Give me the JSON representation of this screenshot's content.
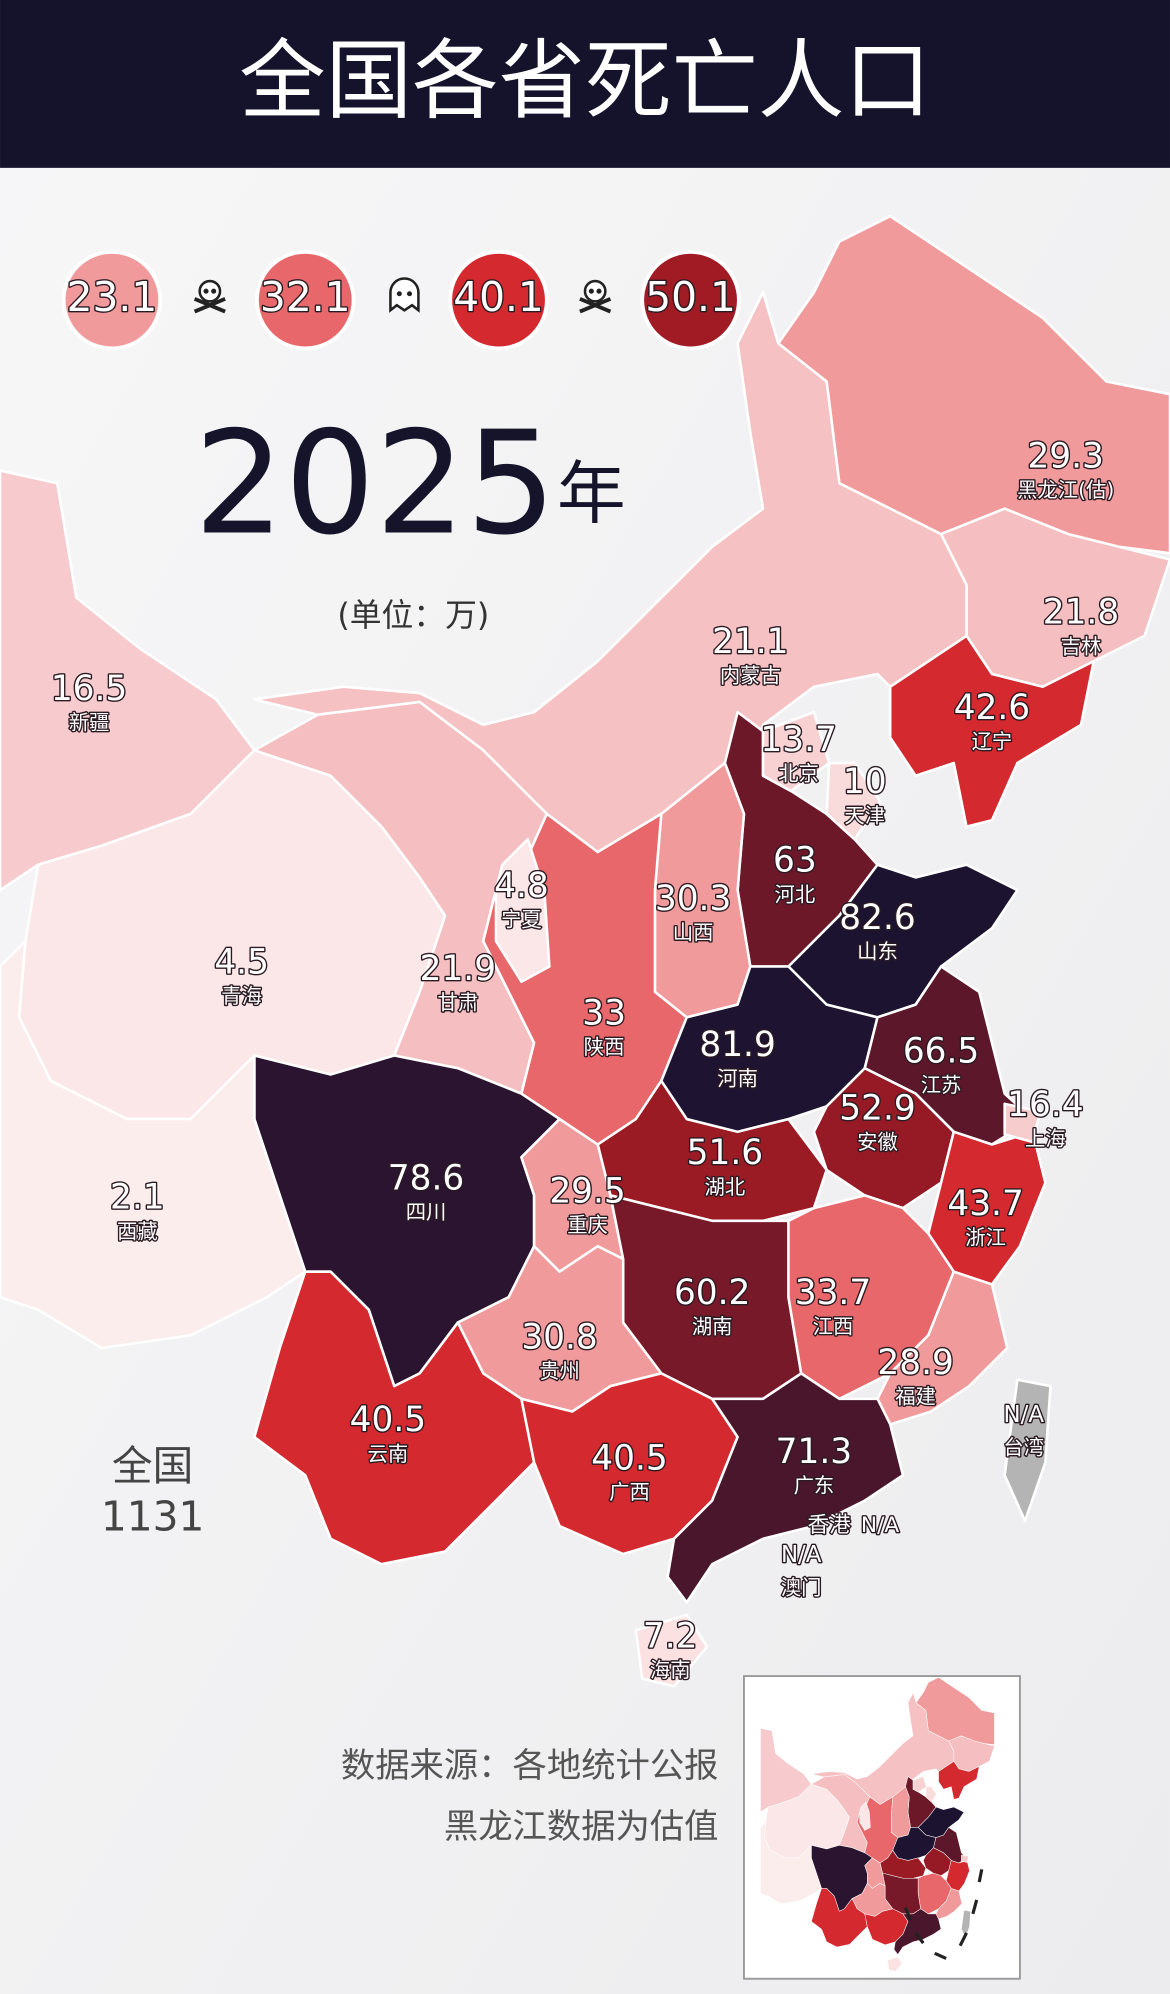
{
  "title": "全国各省死亡人口",
  "legend": {
    "values": [
      23.1,
      32.1,
      40.1,
      50.1
    ],
    "colors": [
      "#f19a9c",
      "#e7676b",
      "#d4292f",
      "#a11b24"
    ],
    "min_color": "#fdf2f2",
    "low_color": "#f5bcbe",
    "max_color": "#1b1330",
    "na_color": "#b4b4b4"
  },
  "year": "2025",
  "year_unit": "年",
  "unit": "(单位：万)",
  "provinces": [
    {
      "name": "黑龙江(估)",
      "value": 29.3
    },
    {
      "name": "吉林",
      "value": 21.8
    },
    {
      "name": "辽宁",
      "value": 42.6
    },
    {
      "name": "内蒙古",
      "value": 21.1
    },
    {
      "name": "北京",
      "value": 13.7
    },
    {
      "name": "天津",
      "value": 10
    },
    {
      "name": "河北",
      "value": 63
    },
    {
      "name": "山东",
      "value": 82.6
    },
    {
      "name": "山西",
      "value": 30.3
    },
    {
      "name": "新疆",
      "value": 16.5
    },
    {
      "name": "宁夏",
      "value": 4.8
    },
    {
      "name": "青海",
      "value": 4.5
    },
    {
      "name": "甘肃",
      "value": 21.9
    },
    {
      "name": "陕西",
      "value": 33
    },
    {
      "name": "河南",
      "value": 81.9
    },
    {
      "name": "江苏",
      "value": 66.5
    },
    {
      "name": "上海",
      "value": 16.4
    },
    {
      "name": "安徽",
      "value": 52.9
    },
    {
      "name": "湖北",
      "value": 51.6
    },
    {
      "name": "四川",
      "value": 78.6
    },
    {
      "name": "重庆",
      "value": 29.5
    },
    {
      "name": "西藏",
      "value": 2.1
    },
    {
      "name": "浙江",
      "value": 43.7
    },
    {
      "name": "湖南",
      "value": 60.2
    },
    {
      "name": "江西",
      "value": 33.7
    },
    {
      "name": "贵州",
      "value": 30.8
    },
    {
      "name": "福建",
      "value": 28.9
    },
    {
      "name": "云南",
      "value": 40.5
    },
    {
      "name": "广西",
      "value": 40.5
    },
    {
      "name": "广东",
      "value": 71.3
    },
    {
      "name": "海南",
      "value": 7.2
    },
    {
      "name": "台湾",
      "value": "N/A"
    },
    {
      "name": "香港",
      "value": "N/A"
    },
    {
      "name": "澳门",
      "value": "N/A"
    }
  ],
  "total": {
    "label": "全国",
    "value": 1131
  },
  "notes": [
    "数据来源：各地统计公报",
    "黑龙江数据为估值"
  ]
}
